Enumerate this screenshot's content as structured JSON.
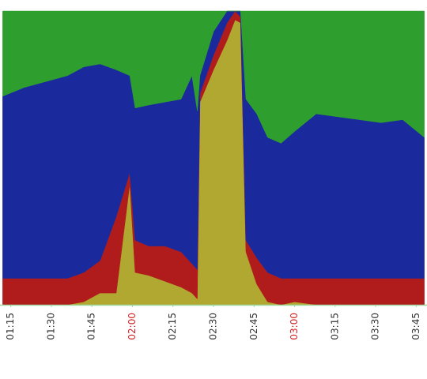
{
  "chart_data": {
    "type": "stacked-area",
    "x": [
      "01:12",
      "01:20",
      "01:28",
      "01:36",
      "01:42",
      "01:48",
      "01:54",
      "01:59",
      "02:01",
      "02:06",
      "02:12",
      "02:18",
      "02:22",
      "02:24",
      "02:25",
      "02:30",
      "02:35",
      "02:38",
      "02:40",
      "02:42",
      "02:46",
      "02:50",
      "02:55",
      "03:00",
      "03:08",
      "03:16",
      "03:24",
      "03:32",
      "03:40",
      "03:48"
    ],
    "series": [
      {
        "color": "#b0a830",
        "values": [
          0,
          0,
          0,
          0,
          1,
          4,
          4,
          41,
          11,
          10,
          8,
          6,
          4,
          2,
          69,
          80,
          90,
          97,
          96,
          18,
          7,
          1,
          0,
          1,
          0,
          0,
          0,
          0,
          0,
          0
        ]
      },
      {
        "color": "#b01c1c",
        "values": [
          9,
          9,
          9,
          9,
          10,
          11,
          26,
          4,
          11,
          10,
          12,
          12,
          10,
          10,
          3,
          5,
          6,
          3,
          2,
          4,
          9,
          10,
          9,
          8,
          9,
          9,
          9,
          9,
          9,
          9
        ]
      },
      {
        "color": "#1a2a9c",
        "values": [
          62,
          65,
          67,
          69,
          70,
          67,
          50,
          33,
          45,
          48,
          49,
          52,
          64,
          54,
          6,
          8,
          4,
          0,
          2,
          48,
          49,
          46,
          46,
          50,
          56,
          55,
          54,
          53,
          54,
          48
        ]
      },
      {
        "color": "#2e9e2e",
        "values": [
          29,
          26,
          24,
          22,
          19,
          18,
          20,
          22,
          33,
          32,
          31,
          30,
          22,
          34,
          22,
          7,
          0,
          0,
          0,
          30,
          35,
          43,
          45,
          41,
          35,
          36,
          37,
          38,
          37,
          43
        ]
      }
    ],
    "xlim": [
      "01:11",
      "03:49"
    ],
    "ylim": [
      0,
      100
    ],
    "xticks": [
      "01:15",
      "01:30",
      "01:45",
      "02:00",
      "02:15",
      "02:30",
      "02:45",
      "03:00",
      "03:15",
      "03:30",
      "03:45"
    ],
    "xtick_colors": [
      "#333333",
      "#333333",
      "#333333",
      "#d02020",
      "#333333",
      "#333333",
      "#333333",
      "#d02020",
      "#333333",
      "#333333",
      "#333333"
    ]
  }
}
